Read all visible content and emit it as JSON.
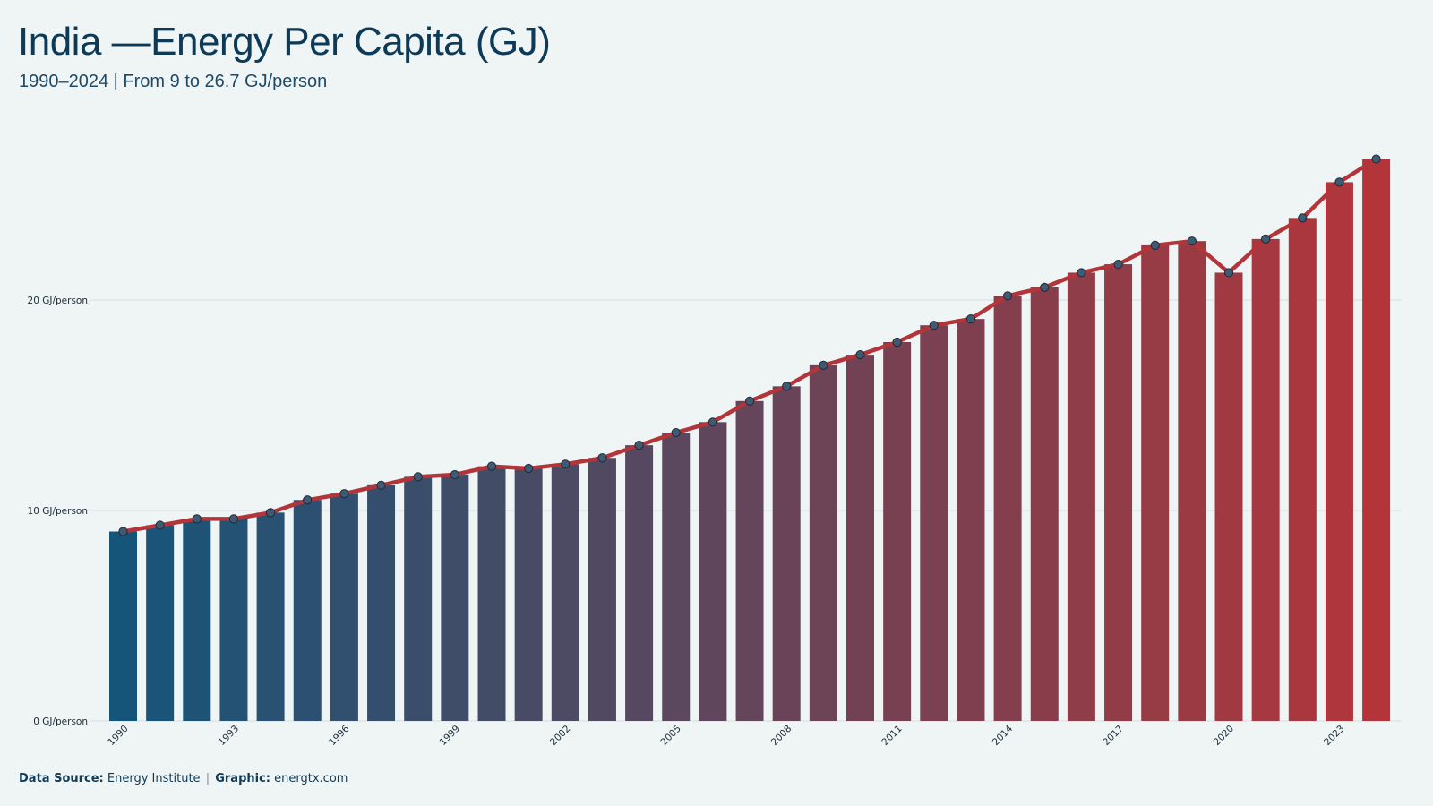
{
  "header": {
    "title": "India —Energy Per Capita (GJ)",
    "subtitle": "1990–2024 | From 9 to 26.7 GJ/person"
  },
  "footer": {
    "source_label": "Data Source:",
    "source_value": "Energy Institute",
    "separator": "|",
    "graphic_label": "Graphic:",
    "graphic_value": "energtx.com"
  },
  "colors": {
    "background": "#eff5f5",
    "bar_start": "#15557a",
    "bar_end": "#b3353a",
    "line": "#b3353a",
    "marker_fill": "#3f5a72",
    "grid": "#d4dde2"
  },
  "chart_data": {
    "type": "bar",
    "overlay": "line",
    "x": [
      1990,
      1991,
      1992,
      1993,
      1994,
      1995,
      1996,
      1997,
      1998,
      1999,
      2000,
      2001,
      2002,
      2003,
      2004,
      2005,
      2006,
      2007,
      2008,
      2009,
      2010,
      2011,
      2012,
      2013,
      2014,
      2015,
      2016,
      2017,
      2018,
      2019,
      2020,
      2021,
      2022,
      2023,
      2024
    ],
    "values": [
      9.0,
      9.3,
      9.6,
      9.6,
      9.9,
      10.5,
      10.8,
      11.2,
      11.6,
      11.7,
      12.1,
      12.0,
      12.2,
      12.5,
      13.1,
      13.7,
      14.2,
      15.2,
      15.9,
      16.9,
      17.4,
      18.0,
      18.8,
      19.1,
      20.2,
      20.6,
      21.3,
      21.7,
      22.6,
      22.8,
      21.3,
      22.9,
      23.9,
      25.6,
      26.7
    ],
    "y_ticks": [
      {
        "value": 0,
        "label": "0 GJ/person"
      },
      {
        "value": 10,
        "label": "10 GJ/person"
      },
      {
        "value": 20,
        "label": "20 GJ/person"
      }
    ],
    "x_tick_labels": [
      "1990",
      "1993",
      "1996",
      "1999",
      "2002",
      "2005",
      "2008",
      "2011",
      "2014",
      "2017",
      "2020",
      "2023"
    ],
    "ylim": [
      0,
      27.5
    ],
    "grid": true,
    "legend": "none"
  }
}
